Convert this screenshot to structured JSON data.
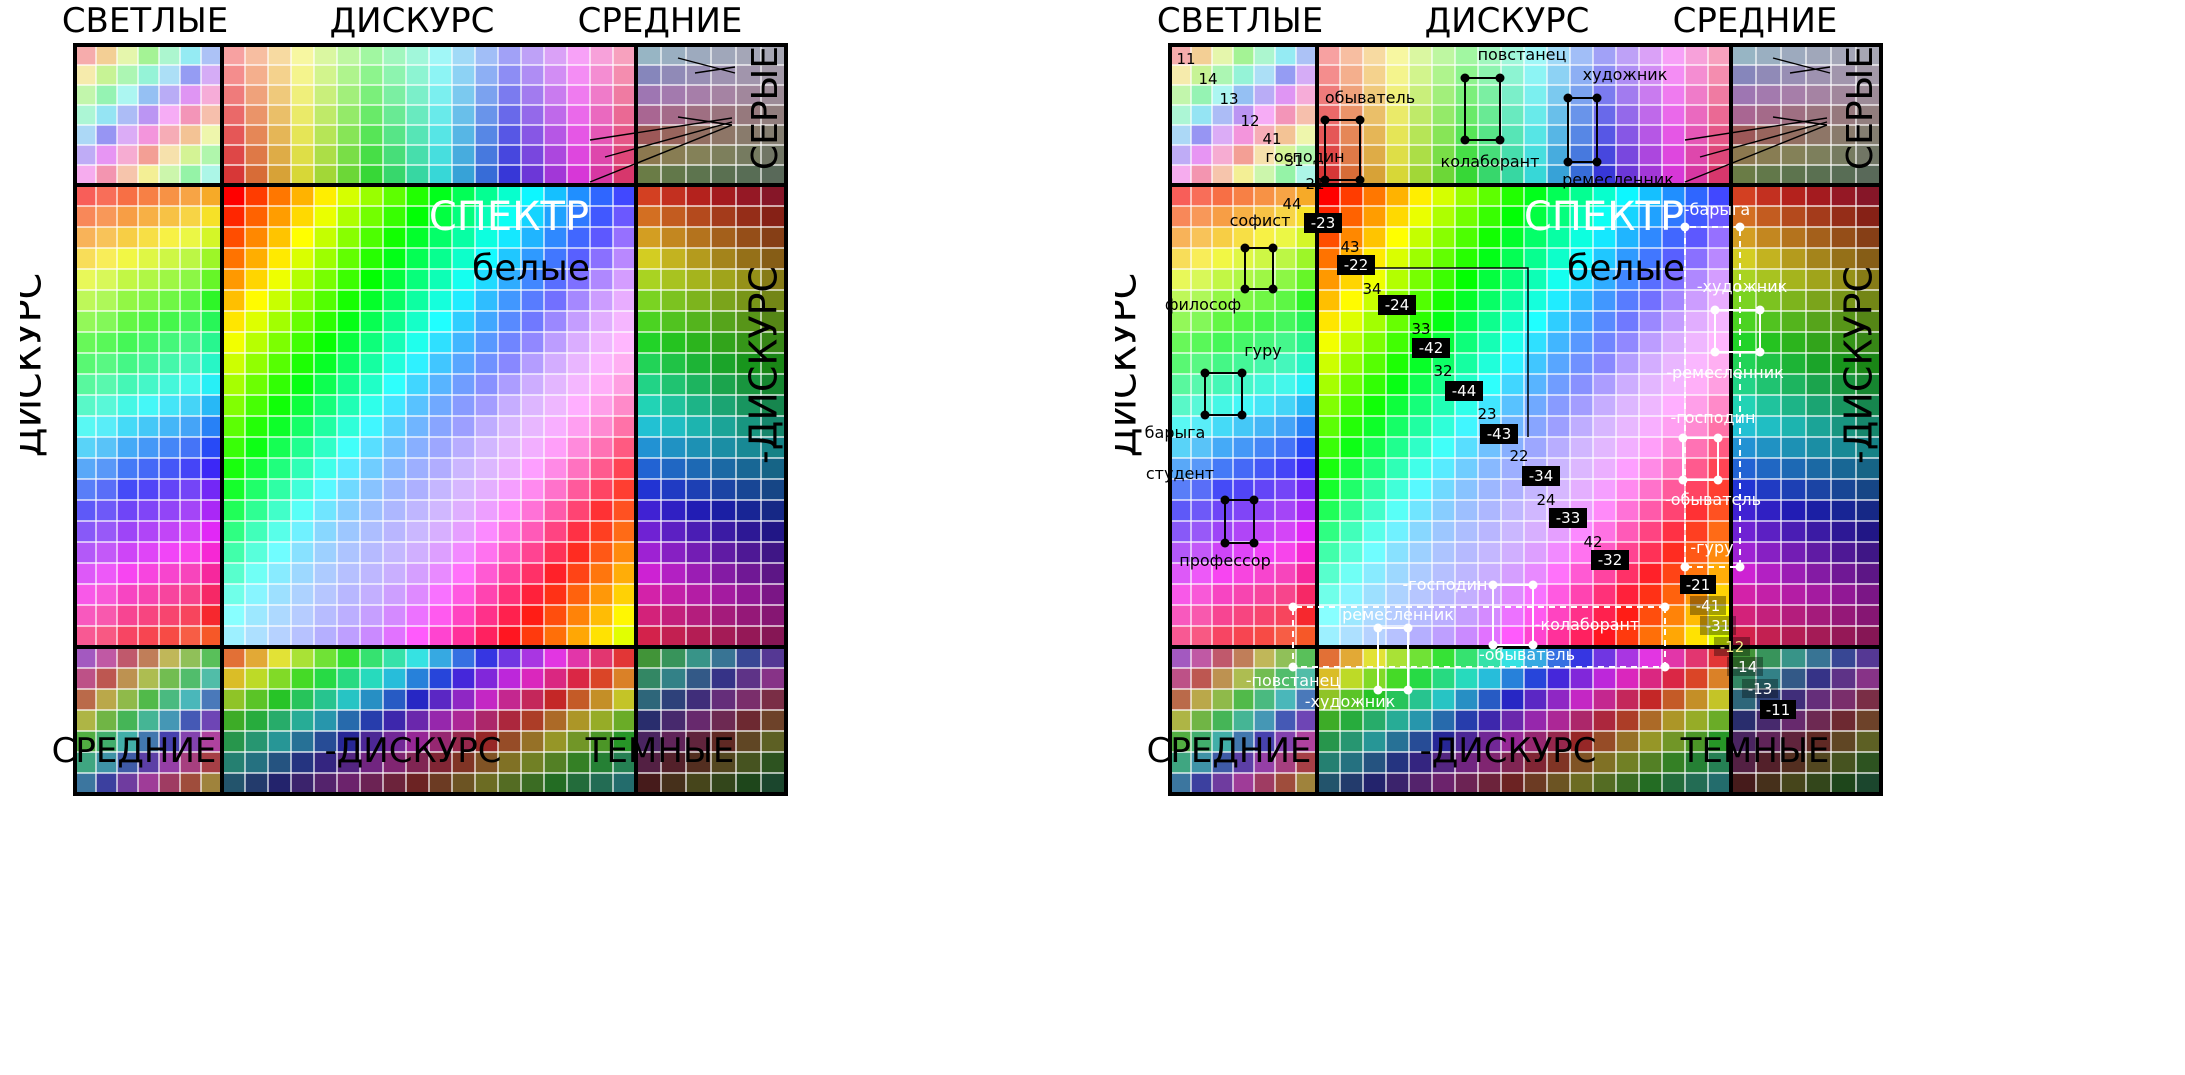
{
  "labels": {
    "top_light": "СВЕТЛЫЕ",
    "top_discourse": "ДИСКУРС",
    "top_medium": "СРЕДНИЕ",
    "right_grays": "СЕРЫЕ",
    "left_discourse": "ДИСКУРС",
    "right_neg_discourse": "-ДИСКУРС",
    "spectrum": "СПЕКТР",
    "whites": "белые",
    "bottom_medium": "СРЕДНИЕ",
    "bottom_neg_discourse": "-ДИСКУРС",
    "bottom_dark": "ТЕМНЫЕ"
  },
  "right_panel": {
    "light_numbers": [
      "11",
      "14",
      "13",
      "12",
      "41",
      "31",
      "21"
    ],
    "discourse_roles": [
      "повстанец",
      "художник",
      "обыватель",
      "господин",
      "колаборант",
      "ремесленник"
    ],
    "spectrum_left_roles": [
      "софист",
      "философ",
      "гуру",
      "барыга",
      "студент",
      "профессор"
    ],
    "diagonal_codes": [
      "44",
      "-23",
      "43",
      "-22",
      "34",
      "-24",
      "33",
      "-42",
      "32",
      "-44",
      "23",
      "-43",
      "22",
      "-34",
      "24",
      "-33",
      "42",
      "-32"
    ],
    "neg_discourse_roles": [
      "-барыга",
      "-художник",
      "-ремесленник",
      "-господин",
      "-обыватель",
      "-гуру"
    ],
    "bottom_roles": [
      "-господин",
      "ремесленник",
      "-колаборант",
      "-обыватель",
      "-повстанец",
      "-художник"
    ],
    "dark_numbers": [
      "-21",
      "-41",
      "-31",
      "-12",
      "-14",
      "-13",
      "-11"
    ]
  }
}
